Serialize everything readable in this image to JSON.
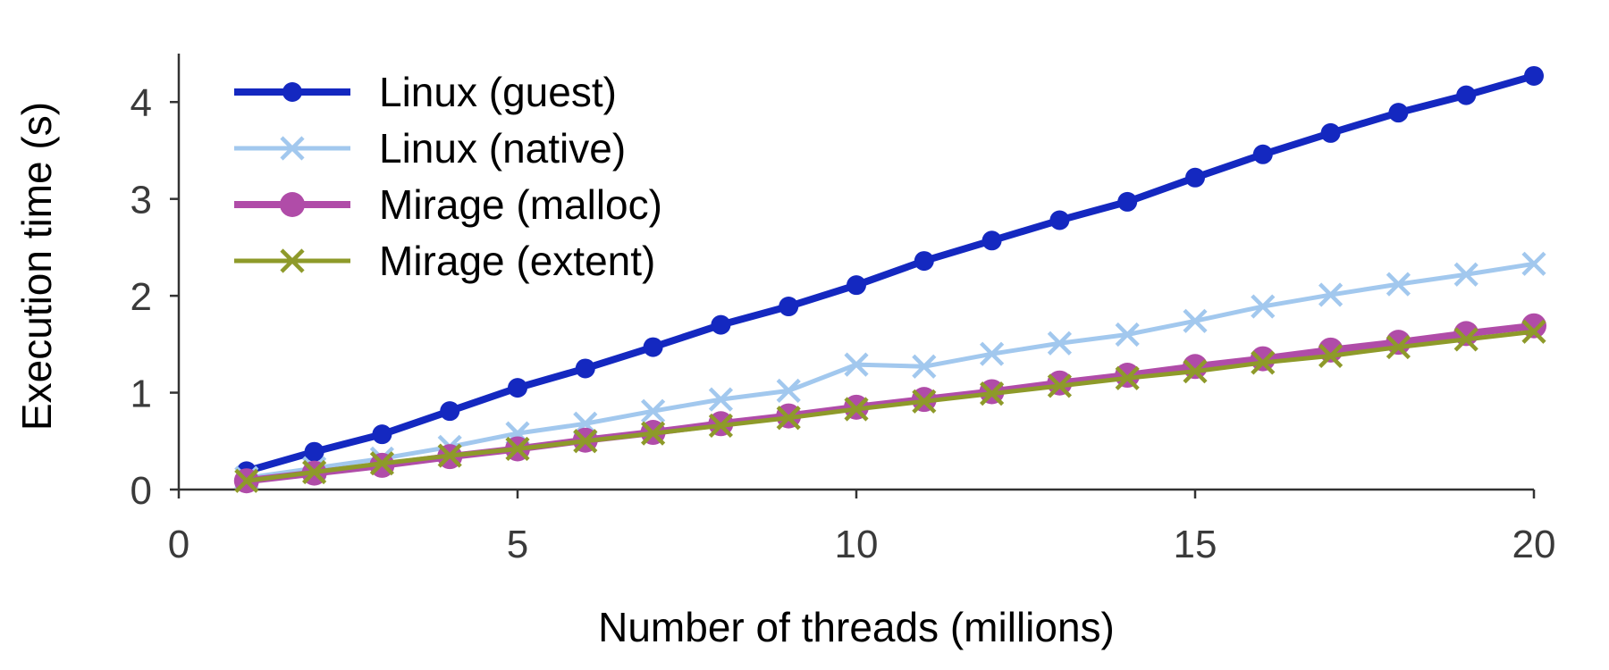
{
  "chart_data": {
    "type": "line",
    "title": "",
    "xlabel": "Number of threads (millions)",
    "ylabel": "Execution time (s)",
    "xlim": [
      0,
      20
    ],
    "ylim": [
      0,
      4.5
    ],
    "xticks": [
      0,
      5,
      10,
      15,
      20
    ],
    "yticks": [
      0,
      1,
      2,
      3,
      4
    ],
    "xtick_labels": [
      "0",
      "5",
      "10",
      "15",
      "20"
    ],
    "ytick_labels": [
      "0",
      "1",
      "2",
      "3",
      "4"
    ],
    "grid": false,
    "legend_position": "top-left",
    "x": [
      1,
      2,
      3,
      4,
      5,
      6,
      7,
      8,
      9,
      10,
      11,
      12,
      13,
      14,
      15,
      16,
      17,
      18,
      19,
      20
    ],
    "series": [
      {
        "name": "Linux (guest)",
        "color": "#1428c0",
        "marker": "circle",
        "values": [
          0.19,
          0.39,
          0.57,
          0.81,
          1.05,
          1.25,
          1.47,
          1.7,
          1.89,
          2.11,
          2.36,
          2.57,
          2.78,
          2.97,
          3.22,
          3.46,
          3.68,
          3.89,
          4.07,
          4.27
        ]
      },
      {
        "name": "Linux (native)",
        "color": "#a2c8ee",
        "marker": "x",
        "values": [
          0.12,
          0.22,
          0.32,
          0.44,
          0.58,
          0.68,
          0.81,
          0.93,
          1.02,
          1.29,
          1.27,
          1.4,
          1.51,
          1.6,
          1.74,
          1.89,
          2.01,
          2.12,
          2.22,
          2.33
        ]
      },
      {
        "name": "Mirage (malloc)",
        "color": "#b04ca8",
        "marker": "circle",
        "values": [
          0.09,
          0.17,
          0.25,
          0.34,
          0.42,
          0.51,
          0.59,
          0.68,
          0.76,
          0.85,
          0.93,
          1.01,
          1.1,
          1.18,
          1.27,
          1.35,
          1.44,
          1.52,
          1.61,
          1.69
        ]
      },
      {
        "name": "Mirage (extent)",
        "color": "#8e9a2a",
        "marker": "x",
        "values": [
          0.09,
          0.18,
          0.27,
          0.35,
          0.42,
          0.5,
          0.58,
          0.66,
          0.74,
          0.83,
          0.91,
          0.99,
          1.07,
          1.15,
          1.22,
          1.31,
          1.38,
          1.47,
          1.55,
          1.63
        ]
      }
    ]
  }
}
